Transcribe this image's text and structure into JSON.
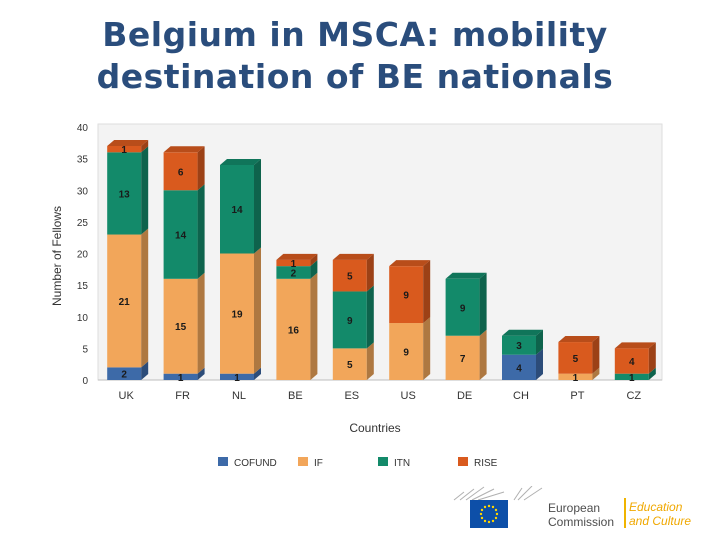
{
  "slide": {
    "title_line1": "Belgium in MSCA: mobility",
    "title_line2": "destination of BE nationals"
  },
  "chart_data": {
    "type": "bar",
    "stacked": true,
    "title": "",
    "xlabel": "Countries",
    "ylabel": "Number of Fellows",
    "ylim": [
      0,
      40
    ],
    "yticks": [
      0,
      5,
      10,
      15,
      20,
      25,
      30,
      35,
      40
    ],
    "grid": false,
    "legend_position": "bottom",
    "categories": [
      "UK",
      "FR",
      "NL",
      "BE",
      "ES",
      "US",
      "DE",
      "CH",
      "PT",
      "CZ"
    ],
    "series": [
      {
        "name": "COFUND",
        "color": "#3d6aa8",
        "values": [
          2,
          1,
          1,
          0,
          0,
          0,
          0,
          4,
          0,
          0
        ]
      },
      {
        "name": "IF",
        "color": "#f2a65a",
        "values": [
          21,
          15,
          19,
          16,
          5,
          9,
          7,
          0,
          1,
          0
        ]
      },
      {
        "name": "ITN",
        "color": "#138a6a",
        "values": [
          13,
          14,
          14,
          2,
          9,
          0,
          9,
          3,
          0,
          1
        ]
      },
      {
        "name": "RISE",
        "color": "#d95a1e",
        "values": [
          1,
          6,
          0,
          1,
          5,
          9,
          0,
          0,
          5,
          4
        ]
      }
    ]
  },
  "logo": {
    "ec_line1": "European",
    "ec_line2": "Commission",
    "dg_line1": "Education",
    "dg_line2": "and Culture"
  }
}
